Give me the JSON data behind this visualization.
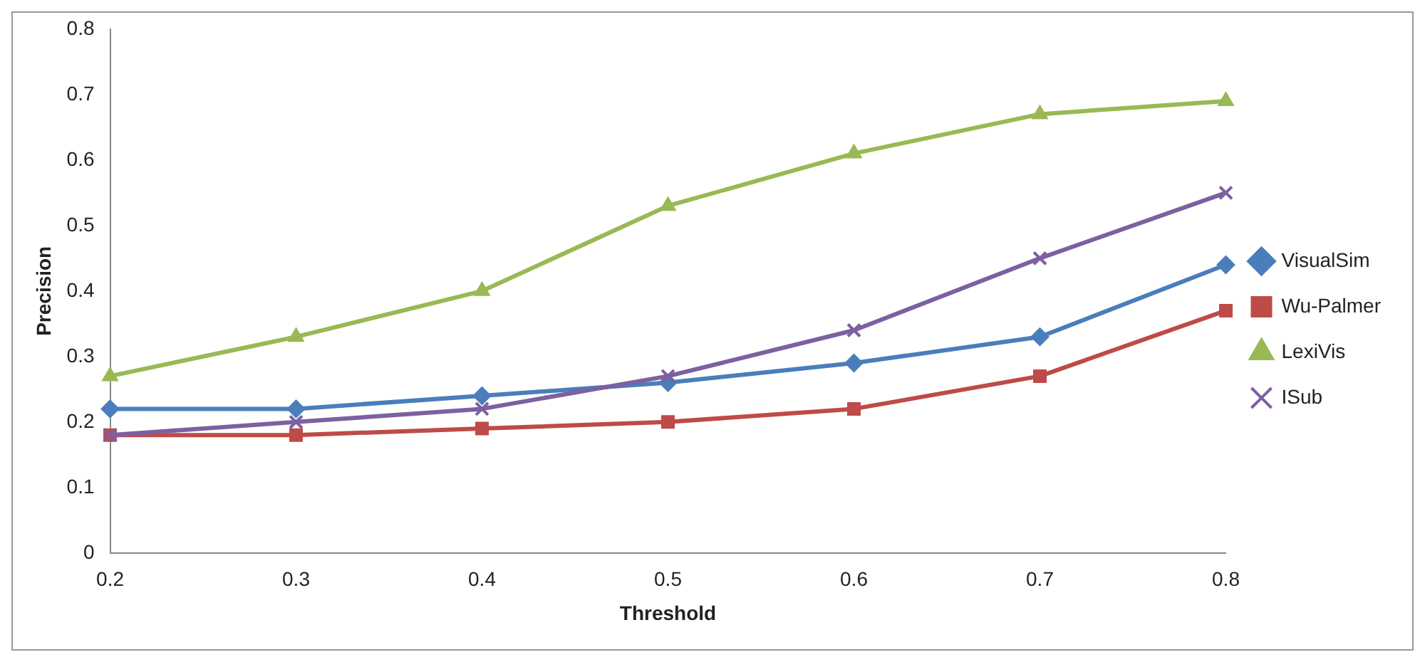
{
  "chart_data": {
    "type": "line",
    "xlabel": "Threshold",
    "ylabel": "Precision",
    "categories": [
      "0.2",
      "0.3",
      "0.4",
      "0.5",
      "0.6",
      "0.7",
      "0.8"
    ],
    "series": [
      {
        "name": "VisualSim",
        "color": "#4a7ebb",
        "marker": "diamond",
        "values": [
          0.22,
          0.22,
          0.24,
          0.26,
          0.29,
          0.33,
          0.44
        ]
      },
      {
        "name": "Wu-Palmer",
        "color": "#be4b48",
        "marker": "square",
        "values": [
          0.18,
          0.18,
          0.19,
          0.2,
          0.22,
          0.27,
          0.37
        ]
      },
      {
        "name": "LexiVis",
        "color": "#98b954",
        "marker": "triangle",
        "values": [
          0.27,
          0.33,
          0.4,
          0.53,
          0.61,
          0.67,
          0.69
        ]
      },
      {
        "name": "ISub",
        "color": "#7d60a0",
        "marker": "cross",
        "values": [
          0.18,
          0.2,
          0.22,
          0.27,
          0.34,
          0.45,
          0.55
        ]
      }
    ],
    "ylim": [
      0,
      0.8
    ],
    "yticks": [
      0,
      0.1,
      0.2,
      0.3,
      0.4,
      0.5,
      0.6,
      0.7,
      0.8
    ],
    "grid": false,
    "legend": "right",
    "line_style": "solid"
  }
}
